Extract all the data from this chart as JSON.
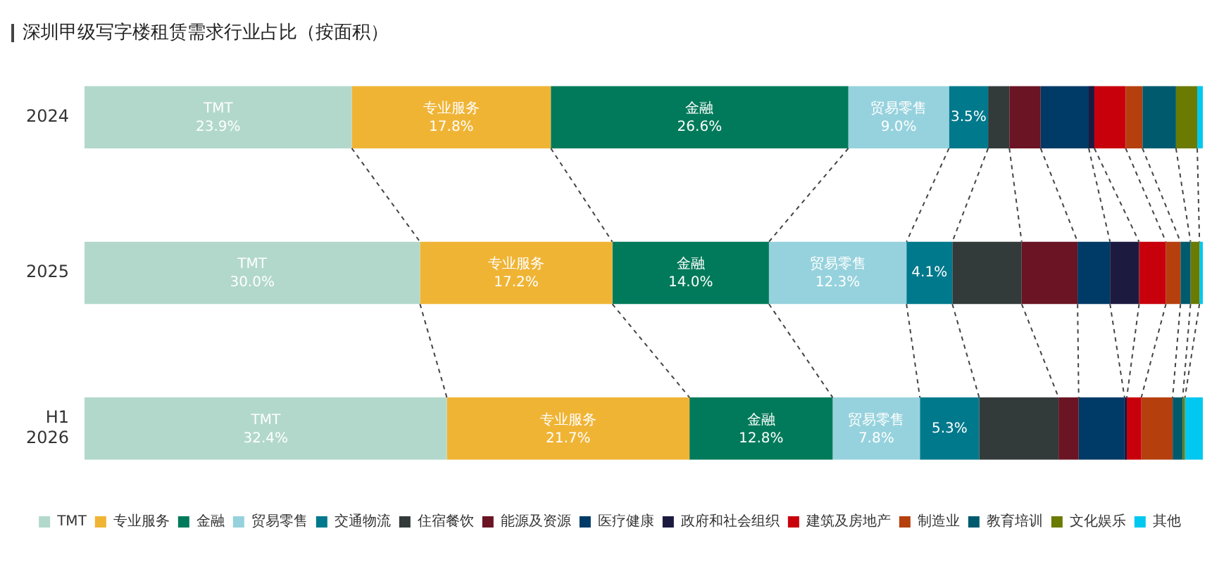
{
  "chart_data": {
    "type": "bar",
    "orientation": "horizontal",
    "stacked": true,
    "title": "深圳甲级写字楼租赁需求行业占比（按面积）",
    "categories": [
      "2024",
      "2025",
      "H1 2026"
    ],
    "xlim": [
      0,
      100
    ],
    "tick_labels": "y",
    "legend": "bottom",
    "series": [
      {
        "name": "TMT",
        "color": "#b2d8cc",
        "values": [
          23.9,
          30.0,
          32.4
        ],
        "value_labels": [
          "23.9%",
          "30.0%",
          "32.4%"
        ]
      },
      {
        "name": "专业服务",
        "color": "#f0b435",
        "values": [
          17.8,
          17.2,
          21.7
        ],
        "value_labels": [
          "17.8%",
          "17.2%",
          "21.7%"
        ]
      },
      {
        "name": "金融",
        "color": "#007a5a",
        "values": [
          26.6,
          14.0,
          12.8
        ],
        "value_labels": [
          "26.6%",
          "14.0%",
          "12.8%"
        ]
      },
      {
        "name": "贸易零售",
        "color": "#96d2dd",
        "values": [
          9.0,
          12.3,
          7.8
        ],
        "value_labels": [
          "9.0%",
          "12.3%",
          "7.8%"
        ]
      },
      {
        "name": "交通物流",
        "color": "#00798c",
        "values": [
          3.5,
          4.1,
          5.3
        ],
        "value_labels": [
          "3.5%",
          "4.1%",
          "5.3%"
        ]
      },
      {
        "name": "住宿餐饮",
        "color": "#333a3a",
        "values": [
          1.9,
          6.2,
          7.1
        ]
      },
      {
        "name": "能源及资源",
        "color": "#6a1424",
        "values": [
          2.8,
          5.0,
          1.8
        ]
      },
      {
        "name": "医疗健康",
        "color": "#003a66",
        "values": [
          4.3,
          2.9,
          4.1
        ]
      },
      {
        "name": "政府和社会组织",
        "color": "#1d1a40",
        "values": [
          0.5,
          2.6,
          0.2
        ]
      },
      {
        "name": "建筑及房地产",
        "color": "#c8000c",
        "values": [
          2.8,
          2.4,
          1.3
        ]
      },
      {
        "name": "制造业",
        "color": "#b5400e",
        "values": [
          1.5,
          1.3,
          2.8
        ]
      },
      {
        "name": "教育培训",
        "color": "#005a6e",
        "values": [
          3.0,
          0.9,
          0.9
        ]
      },
      {
        "name": "文化娱乐",
        "color": "#6b7a00",
        "values": [
          1.9,
          0.8,
          0.2
        ]
      },
      {
        "name": "其他",
        "color": "#00c8f0",
        "values": [
          0.5,
          0.3,
          1.6
        ]
      }
    ]
  }
}
